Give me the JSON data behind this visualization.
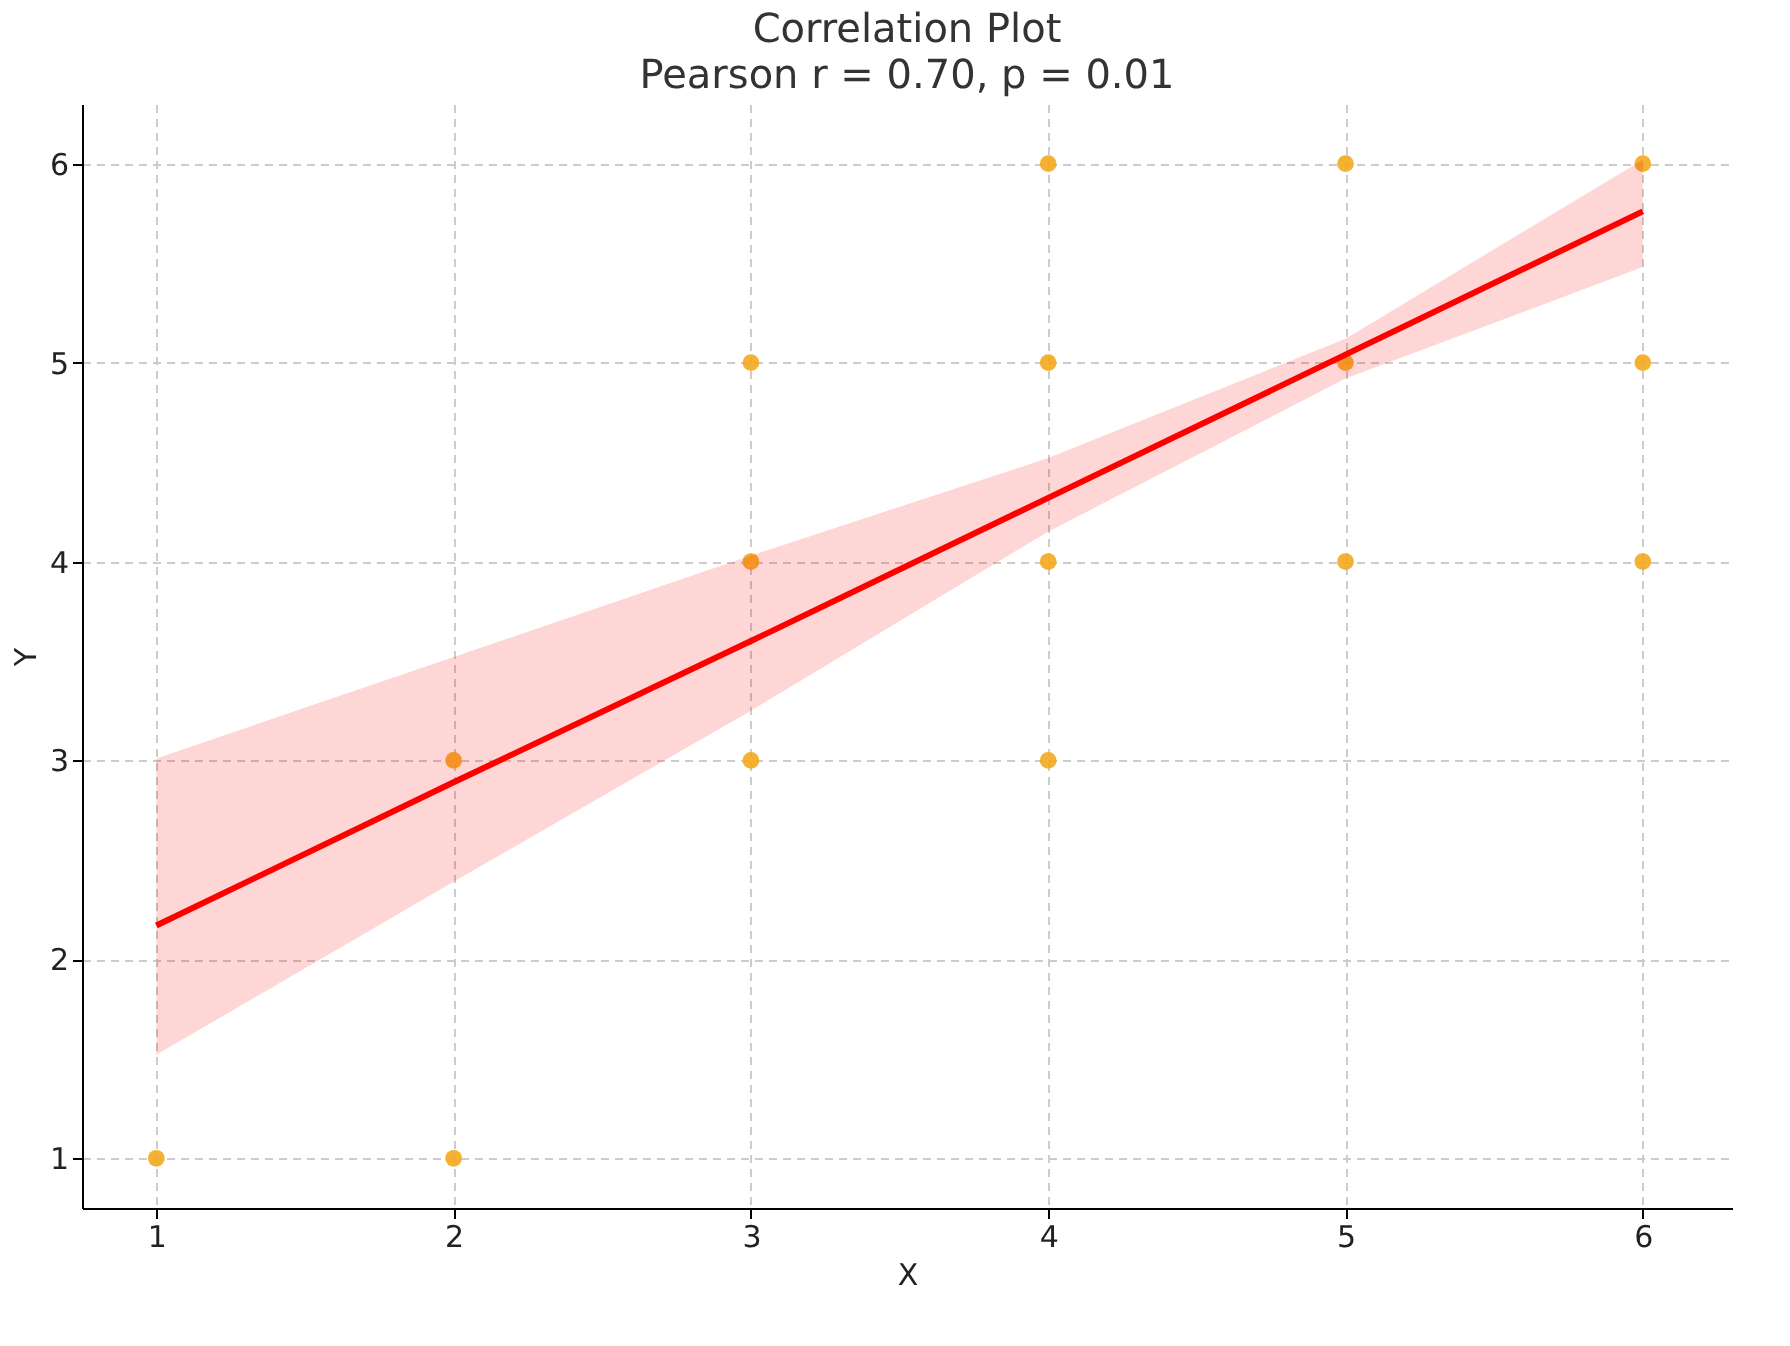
{
  "chart_data": {
    "type": "scatter",
    "title": "Correlation Plot",
    "subtitle": "Pearson r = 0.70, p = 0.01",
    "xlabel": "X",
    "ylabel": "Y",
    "xlim": [
      0.75,
      6.3
    ],
    "ylim": [
      0.75,
      6.3
    ],
    "xticks": [
      1,
      2,
      3,
      4,
      5,
      6
    ],
    "yticks": [
      1,
      2,
      3,
      4,
      5,
      6
    ],
    "grid": true,
    "series": [
      {
        "color": "#f4a81d",
        "marker": "circle",
        "x": [
          1,
          2,
          2,
          3,
          3,
          3,
          4,
          4,
          4,
          4,
          5,
          5,
          5,
          6,
          6,
          6
        ],
        "values": [
          1,
          1,
          3,
          3,
          4,
          5,
          3,
          4,
          5,
          6,
          4,
          5,
          6,
          4,
          5,
          6
        ]
      },
      {
        "type": "line",
        "color": "#ff0000",
        "line_style": "solid",
        "x": [
          1,
          2,
          3,
          4,
          5,
          6
        ],
        "values": [
          2.17,
          2.89,
          3.6,
          4.32,
          5.04,
          5.76
        ],
        "lower": [
          1.52,
          2.39,
          3.25,
          4.15,
          4.92,
          5.48
        ],
        "upper": [
          3.01,
          3.52,
          4.03,
          4.52,
          5.12,
          6.02
        ]
      }
    ]
  }
}
